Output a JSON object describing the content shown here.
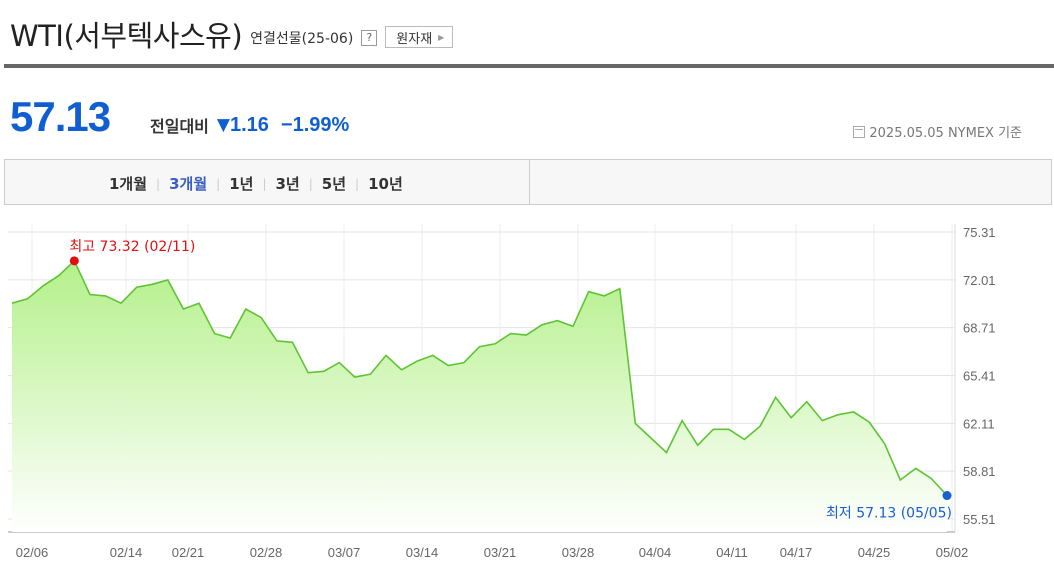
{
  "header": {
    "title": "WTI(서부텍사스유)",
    "subtitle": "연결선물(25-06)",
    "help_label": "?",
    "raw_button_label": "원자재"
  },
  "quote": {
    "price": "57.13",
    "change_label": "전일대비",
    "change_arrow": "▼",
    "change_value": "1.16",
    "change_percent": "−1.99%",
    "as_of": "2025.05.05 NYMEX 기준"
  },
  "tabs": [
    {
      "label": "1개월",
      "active": false
    },
    {
      "label": "3개월",
      "active": true
    },
    {
      "label": "1년",
      "active": false
    },
    {
      "label": "3년",
      "active": false
    },
    {
      "label": "5년",
      "active": false
    },
    {
      "label": "10년",
      "active": false
    }
  ],
  "chart_data": {
    "type": "area",
    "title": "",
    "xlabel": "",
    "ylabel": "",
    "ylim": [
      55.51,
      75.31
    ],
    "y_ticks": [
      "75.31",
      "72.01",
      "68.71",
      "65.41",
      "62.11",
      "58.81",
      "55.51"
    ],
    "x_tick_labels": [
      "02/06",
      "02/14",
      "02/21",
      "02/28",
      "03/07",
      "03/14",
      "03/21",
      "03/28",
      "04/04",
      "04/11",
      "04/17",
      "04/25",
      "05/02"
    ],
    "grid": true,
    "colors": {
      "line": "#5ec433",
      "fill_top": "#b4f08a",
      "fill_bottom": "#ffffff",
      "high": "#e01010",
      "low": "#1a5fd0"
    },
    "annotations": {
      "high": {
        "label": "최고 73.32 (02/11)",
        "value": 73.32
      },
      "low": {
        "label": "최저 57.13 (05/05)",
        "value": 57.13
      }
    },
    "series": [
      {
        "values": [
          70.4,
          70.7,
          71.6,
          72.3,
          73.32,
          71.0,
          70.9,
          70.4,
          71.5,
          71.7,
          72.0,
          70.0,
          70.4,
          68.3,
          68.0,
          70.0,
          69.4,
          67.8,
          67.7,
          65.6,
          65.7,
          66.3,
          65.3,
          65.5,
          66.8,
          65.8,
          66.4,
          66.8,
          66.1,
          66.3,
          67.4,
          67.6,
          68.3,
          68.2,
          68.9,
          69.2,
          68.8,
          71.2,
          70.9,
          71.4,
          62.1,
          61.1,
          60.1,
          62.3,
          60.6,
          61.7,
          61.7,
          61.0,
          61.9,
          63.9,
          62.5,
          63.6,
          62.3,
          62.7,
          62.9,
          62.2,
          60.7,
          58.2,
          59.0,
          58.3,
          57.13
        ]
      }
    ]
  }
}
